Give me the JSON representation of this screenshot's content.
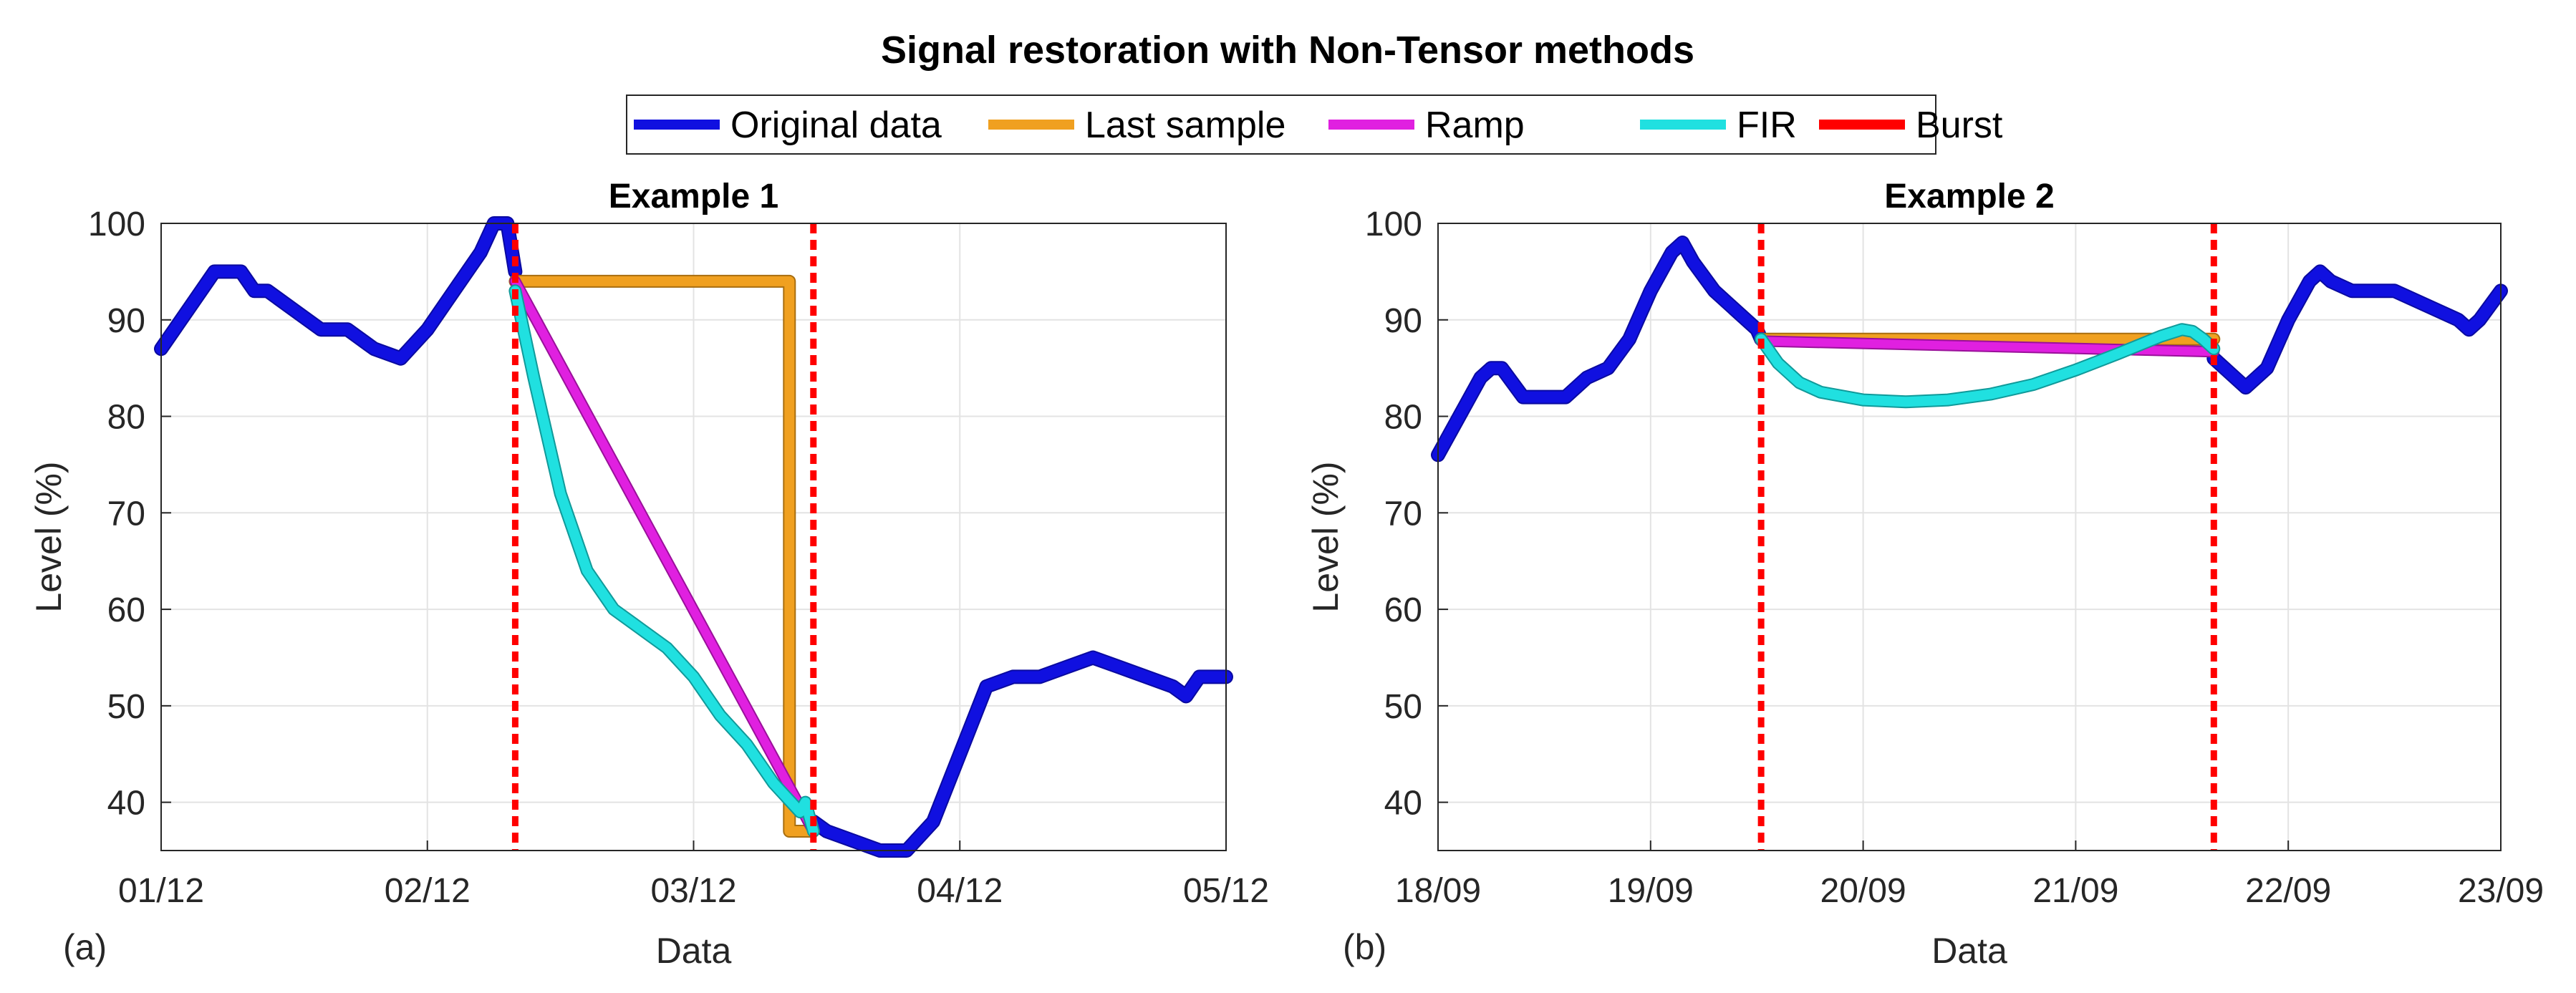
{
  "figure": {
    "title": "Signal restoration with Non-Tensor methods"
  },
  "legend": {
    "entries": [
      {
        "label": "Original data",
        "color": "#1010e0"
      },
      {
        "label": "Last sample",
        "color": "#f0a020"
      },
      {
        "label": "Ramp",
        "color": "#e020e0"
      },
      {
        "label": "FIR",
        "color": "#20e0e0"
      },
      {
        "label": "Burst",
        "color": "#ff0000"
      }
    ],
    "placement": "top-center"
  },
  "chart_data": [
    {
      "type": "line",
      "panel": "(a)",
      "title": "Example 1",
      "xlabel": "Data",
      "ylabel": "Level (%)",
      "x_ticks": [
        "01/12",
        "02/12",
        "03/12",
        "04/12",
        "05/12"
      ],
      "xlim": [
        0,
        4
      ],
      "ylim": [
        35,
        100
      ],
      "y_ticks": [
        40,
        50,
        60,
        70,
        80,
        90,
        100
      ],
      "grid": true,
      "burst": [
        1.33,
        2.45
      ],
      "series": [
        {
          "name": "Original data",
          "color": "#1010e0",
          "x": [
            0,
            0.1,
            0.2,
            0.3,
            0.35,
            0.4,
            0.5,
            0.6,
            0.7,
            0.8,
            0.9,
            1.0,
            1.1,
            1.2,
            1.25,
            1.3,
            1.33,
            null,
            2.45,
            2.5,
            2.6,
            2.7,
            2.8,
            2.9,
            3.0,
            3.1,
            3.2,
            3.3,
            3.4,
            3.5,
            3.6,
            3.7,
            3.8,
            3.85,
            3.9,
            4.0
          ],
          "y": [
            87,
            91,
            95,
            95,
            93,
            93,
            91,
            89,
            89,
            87,
            86,
            89,
            93,
            97,
            100,
            100,
            95,
            null,
            38,
            37,
            36,
            35,
            35,
            38,
            45,
            52,
            53,
            53,
            54,
            55,
            54,
            53,
            52,
            51,
            53,
            53
          ]
        },
        {
          "name": "Last sample",
          "color": "#f0a020",
          "x": [
            1.33,
            1.35,
            2.36,
            2.36,
            2.45
          ],
          "y": [
            94,
            94,
            94,
            37,
            37
          ]
        },
        {
          "name": "Ramp",
          "color": "#e020e0",
          "x": [
            1.33,
            2.45
          ],
          "y": [
            94,
            37
          ]
        },
        {
          "name": "FIR",
          "color": "#20e0e0",
          "x": [
            1.33,
            1.4,
            1.5,
            1.6,
            1.7,
            1.8,
            1.9,
            2.0,
            2.1,
            2.2,
            2.3,
            2.4,
            2.42,
            2.45
          ],
          "y": [
            93,
            84,
            72,
            64,
            60,
            58,
            56,
            53,
            49,
            46,
            42,
            39,
            40,
            37
          ]
        }
      ]
    },
    {
      "type": "line",
      "panel": "(b)",
      "title": "Example 2",
      "xlabel": "Data",
      "ylabel": "Level (%)",
      "x_ticks": [
        "18/09",
        "19/09",
        "20/09",
        "21/09",
        "22/09",
        "23/09"
      ],
      "xlim": [
        0,
        5
      ],
      "ylim": [
        35,
        100
      ],
      "y_ticks": [
        40,
        50,
        60,
        70,
        80,
        90,
        100
      ],
      "grid": true,
      "burst": [
        1.52,
        3.65
      ],
      "series": [
        {
          "name": "Original data",
          "color": "#1010e0",
          "x": [
            0,
            0.1,
            0.2,
            0.25,
            0.3,
            0.4,
            0.5,
            0.6,
            0.7,
            0.8,
            0.9,
            1.0,
            1.1,
            1.15,
            1.2,
            1.3,
            1.4,
            1.5,
            1.52,
            null,
            3.65,
            3.7,
            3.8,
            3.9,
            4.0,
            4.1,
            4.15,
            4.2,
            4.3,
            4.4,
            4.5,
            4.6,
            4.7,
            4.8,
            4.85,
            4.9,
            5.0
          ],
          "y": [
            76,
            80,
            84,
            85,
            85,
            82,
            82,
            82,
            84,
            85,
            88,
            93,
            97,
            98,
            96,
            93,
            91,
            89,
            88,
            null,
            86,
            85,
            83,
            85,
            90,
            94,
            95,
            94,
            93,
            93,
            93,
            92,
            91,
            90,
            89,
            90,
            93
          ]
        },
        {
          "name": "Last sample",
          "color": "#f0a020",
          "x": [
            1.52,
            3.65
          ],
          "y": [
            88,
            88
          ]
        },
        {
          "name": "Ramp",
          "color": "#e020e0",
          "x": [
            1.52,
            3.65
          ],
          "y": [
            87.8,
            86.7
          ]
        },
        {
          "name": "FIR",
          "color": "#20e0e0",
          "x": [
            1.52,
            1.6,
            1.7,
            1.8,
            2.0,
            2.2,
            2.4,
            2.6,
            2.8,
            3.0,
            3.2,
            3.4,
            3.5,
            3.55,
            3.6,
            3.65
          ],
          "y": [
            88,
            85.5,
            83.5,
            82.5,
            81.7,
            81.5,
            81.7,
            82.3,
            83.3,
            84.8,
            86.5,
            88.3,
            89,
            88.8,
            88,
            87
          ]
        }
      ]
    }
  ]
}
